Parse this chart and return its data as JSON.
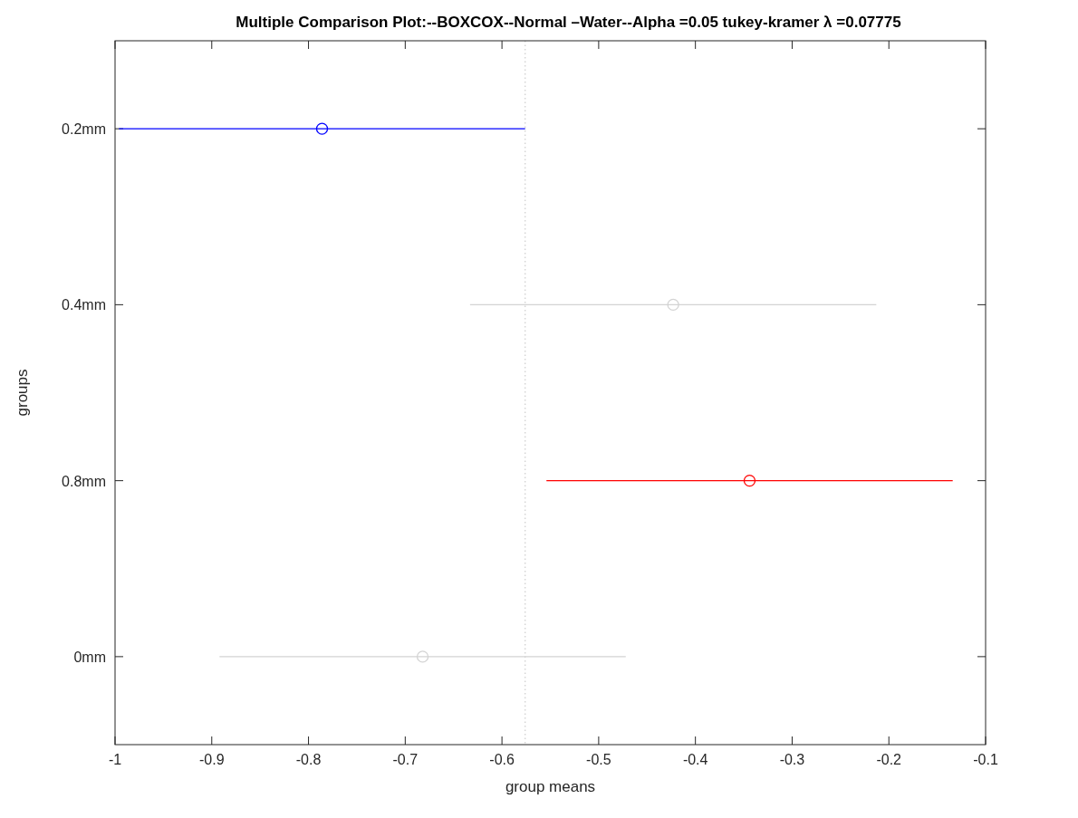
{
  "chart_data": {
    "type": "scatter",
    "orientation": "horizontal",
    "title": "Multiple Comparison Plot:--BOXCOX--Normal –Water--Alpha =0.05 tukey-kramer λ =0.07775",
    "xlabel": "group means",
    "ylabel": "groups",
    "categories": [
      "0.2mm",
      "0.4mm",
      "0.8mm",
      "0mm"
    ],
    "values": [
      -0.786,
      -0.423,
      -0.344,
      -0.682
    ],
    "errors": [
      0.21,
      0.21,
      0.21,
      0.21
    ],
    "colors": [
      "#0000ff",
      "#d3d3d3",
      "#ff0000",
      "#d3d3d3"
    ],
    "marker": "circle",
    "grid": false,
    "xlim": [
      -1,
      -0.1
    ],
    "xticks": [
      -1,
      -0.9,
      -0.8,
      -0.7,
      -0.6,
      -0.5,
      -0.4,
      -0.3,
      -0.2,
      -0.1
    ],
    "ref_lines": [
      {
        "axis": "x",
        "value": -0.576,
        "color": "#cccccc",
        "line_style": "dotted"
      }
    ]
  }
}
